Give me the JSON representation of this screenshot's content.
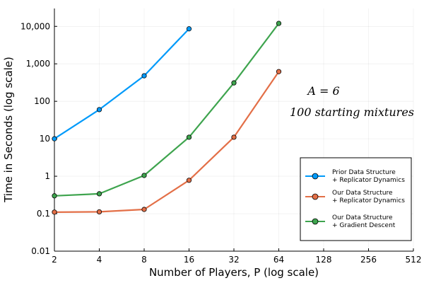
{
  "chart_data": {
    "type": "line",
    "xlabel": "Number of Players, P (log scale)",
    "ylabel": "Time in Seconds (log scale)",
    "x_scale": "log2",
    "y_scale": "log10",
    "xlim": [
      2,
      512
    ],
    "ylim": [
      0.01,
      30000
    ],
    "x_ticks": [
      2,
      4,
      8,
      16,
      32,
      64,
      128,
      256,
      512
    ],
    "x_tick_labels": [
      "2",
      "4",
      "8",
      "16",
      "32",
      "64",
      "128",
      "256",
      "512"
    ],
    "y_ticks": [
      0.01,
      0.1,
      1,
      10,
      100,
      1000,
      10000
    ],
    "y_tick_labels": [
      "0.01",
      "0.1",
      "1",
      "10",
      "100",
      "1,000",
      "10,000"
    ],
    "grid": true,
    "legend_position": "bottom-right",
    "annotations": [
      "A = 6",
      "100 starting mixtures"
    ],
    "series": [
      {
        "name": "Prior Data Structure + Replicator Dynamics",
        "legend_lines": [
          "Prior Data Structure",
          "+ Replicator Dynamics"
        ],
        "color": "#009AFA",
        "x": [
          2,
          4,
          8,
          16
        ],
        "y": [
          10,
          60,
          480,
          8600
        ]
      },
      {
        "name": "Our Data Structure + Replicator Dynamics",
        "legend_lines": [
          "Our Data Structure",
          "+ Replicator Dynamics"
        ],
        "color": "#E36F47",
        "x": [
          2,
          4,
          8,
          16,
          32,
          64
        ],
        "y": [
          0.11,
          0.112,
          0.13,
          0.78,
          11,
          620
        ]
      },
      {
        "name": "Our Data Structure + Gradient Descent",
        "legend_lines": [
          "Our Data Structure",
          "+ Gradient Descent"
        ],
        "color": "#3EA44E",
        "x": [
          2,
          4,
          8,
          16,
          32,
          64
        ],
        "y": [
          0.3,
          0.34,
          1.05,
          11,
          310,
          12000
        ]
      }
    ]
  }
}
